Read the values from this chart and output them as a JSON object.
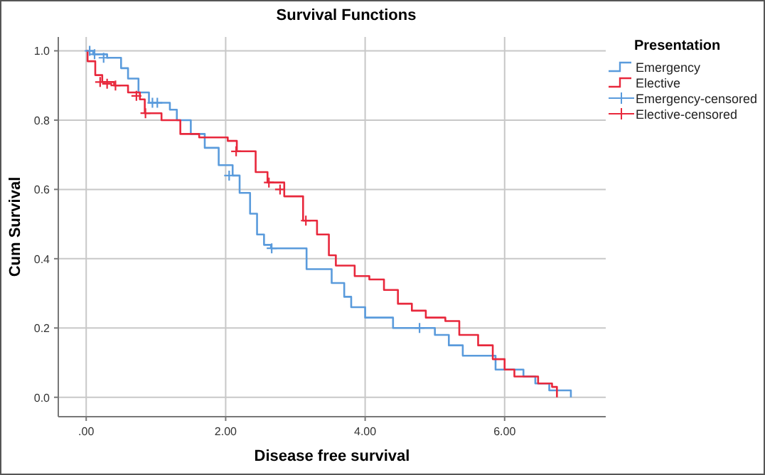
{
  "chart_data": {
    "type": "step",
    "title": "Survival Functions",
    "xlabel": "Disease free survival",
    "ylabel": "Cum Survival",
    "legend_title": "Presentation",
    "xlim": [
      -0.4,
      7.45
    ],
    "ylim": [
      -0.056,
      1.04
    ],
    "xticks": [
      {
        "value": 0,
        "label": ".00"
      },
      {
        "value": 2,
        "label": "2.00"
      },
      {
        "value": 4,
        "label": "4.00"
      },
      {
        "value": 6,
        "label": "6.00"
      }
    ],
    "yticks": [
      {
        "value": 0,
        "label": "0.0"
      },
      {
        "value": 0.2,
        "label": "0.2"
      },
      {
        "value": 0.4,
        "label": "0.4"
      },
      {
        "value": 0.6,
        "label": "0.6"
      },
      {
        "value": 0.8,
        "label": "0.8"
      },
      {
        "value": 1,
        "label": "1.0"
      }
    ],
    "grid": true,
    "legend": "right",
    "series": [
      {
        "name": "Emergency",
        "color": "#5a9bdc",
        "x": [
          0,
          0.1,
          0.3,
          0.5,
          0.6,
          0.75,
          0.9,
          1.2,
          1.3,
          1.5,
          1.7,
          1.9,
          2.1,
          2.2,
          2.35,
          2.45,
          2.55,
          2.65,
          3.16,
          3.52,
          3.7,
          3.8,
          4.0,
          4.4,
          5.0,
          5.2,
          5.4,
          5.87,
          6.27,
          6.44,
          6.64,
          6.95
        ],
        "values": [
          1.0,
          0.99,
          0.98,
          0.95,
          0.92,
          0.88,
          0.85,
          0.83,
          0.8,
          0.76,
          0.72,
          0.67,
          0.64,
          0.59,
          0.53,
          0.47,
          0.44,
          0.43,
          0.37,
          0.33,
          0.29,
          0.26,
          0.23,
          0.2,
          0.18,
          0.15,
          0.12,
          0.08,
          0.06,
          0.04,
          0.02,
          0.0
        ]
      },
      {
        "name": "Elective",
        "color": "#e8283c",
        "x": [
          0,
          0.02,
          0.13,
          0.23,
          0.4,
          0.6,
          0.77,
          0.84,
          1.08,
          1.35,
          1.62,
          2.03,
          2.16,
          2.43,
          2.6,
          2.84,
          3.11,
          3.31,
          3.48,
          3.58,
          3.85,
          4.06,
          4.27,
          4.47,
          4.67,
          4.87,
          5.15,
          5.35,
          5.62,
          5.83,
          6.0,
          6.14,
          6.48,
          6.68,
          6.75
        ],
        "values": [
          1.0,
          0.97,
          0.93,
          0.91,
          0.9,
          0.88,
          0.86,
          0.82,
          0.8,
          0.76,
          0.75,
          0.74,
          0.71,
          0.65,
          0.62,
          0.58,
          0.51,
          0.47,
          0.41,
          0.38,
          0.35,
          0.34,
          0.31,
          0.27,
          0.25,
          0.23,
          0.22,
          0.18,
          0.15,
          0.11,
          0.08,
          0.06,
          0.04,
          0.03,
          0.0
        ]
      },
      {
        "name": "Emergency-censored",
        "type": "scatter",
        "marker": "cross",
        "color": "#5a9bdc",
        "x": [
          0.05,
          0.12,
          0.25,
          0.95,
          1.02,
          2.05,
          2.66,
          4.78
        ],
        "values": [
          1.0,
          0.99,
          0.98,
          0.85,
          0.85,
          0.64,
          0.43,
          0.2
        ]
      },
      {
        "name": "Elective-censored",
        "type": "scatter",
        "marker": "cross",
        "color": "#e8283c",
        "x": [
          0.2,
          0.3,
          0.42,
          0.72,
          0.85,
          2.15,
          2.62,
          2.78,
          3.15
        ],
        "values": [
          0.91,
          0.905,
          0.9,
          0.87,
          0.82,
          0.71,
          0.62,
          0.6,
          0.51
        ]
      }
    ]
  }
}
